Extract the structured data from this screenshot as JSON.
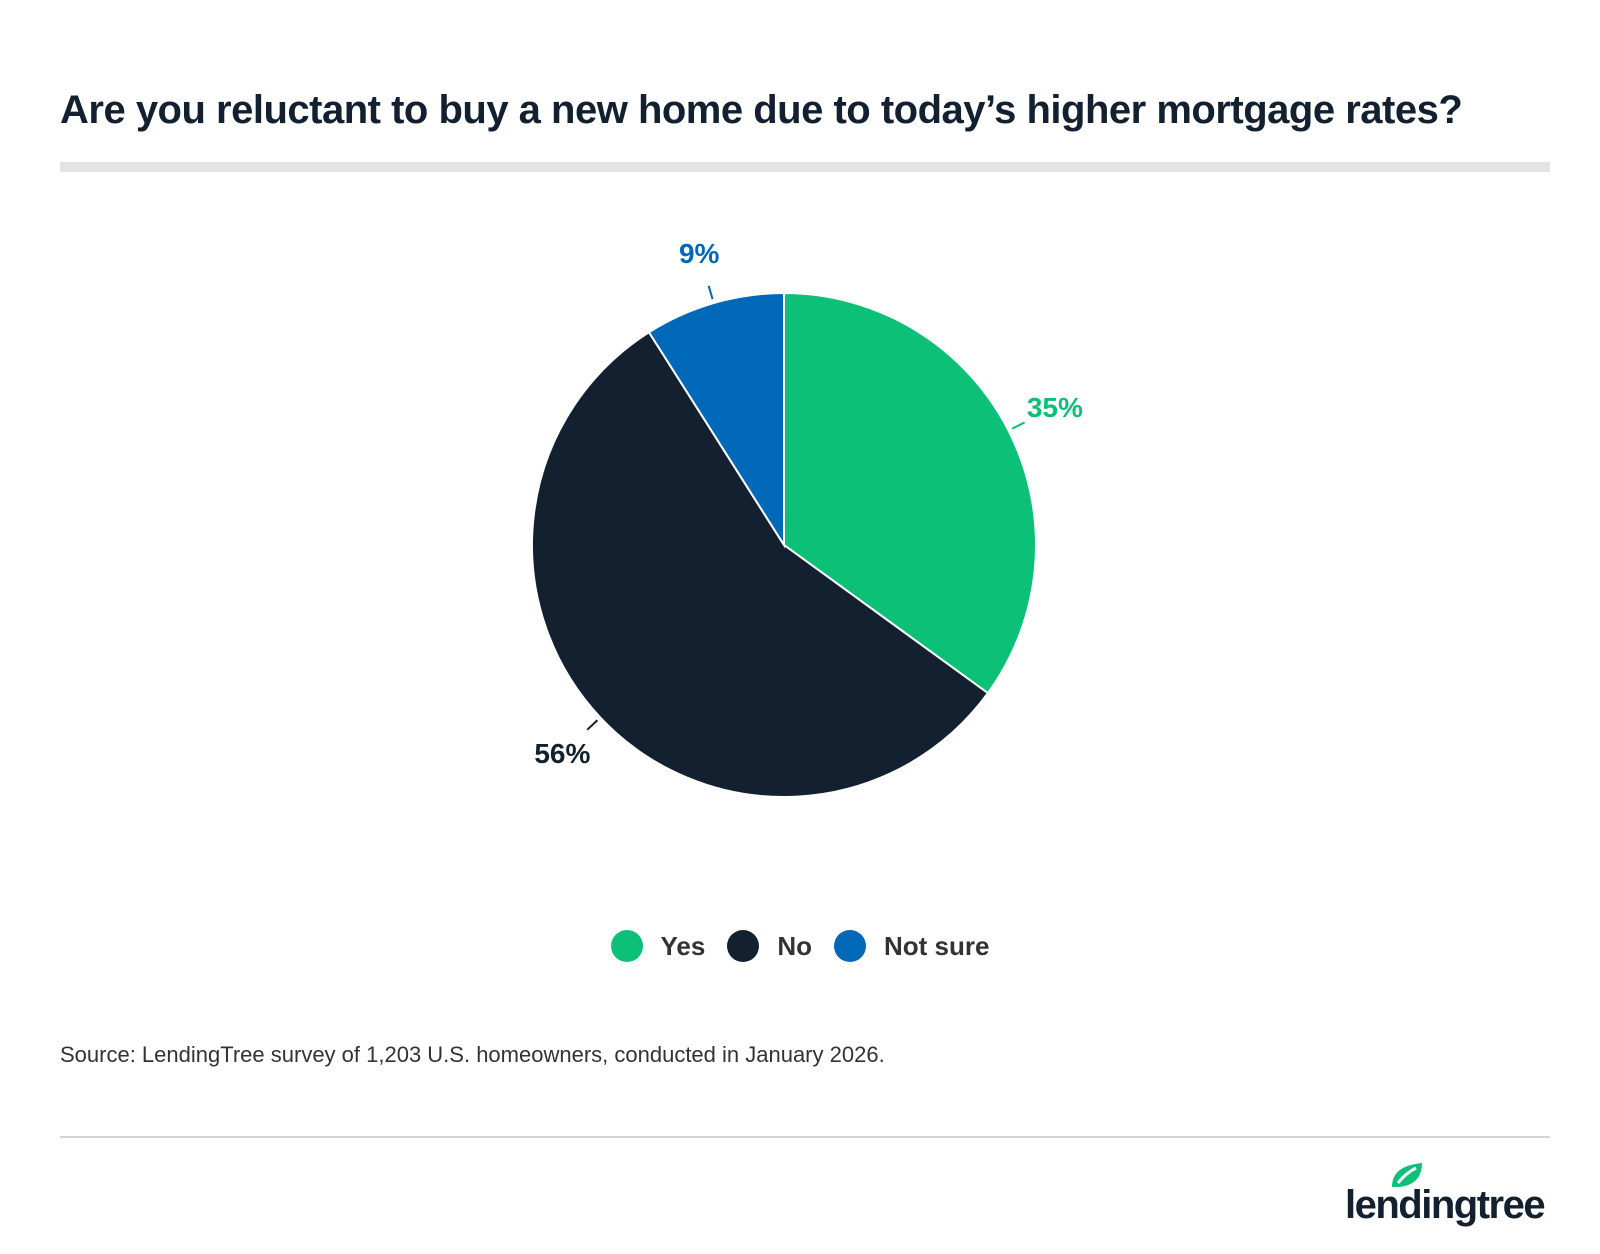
{
  "title": "Are you reluctant to buy a new home due to today’s higher mortgage rates?",
  "chart_data": {
    "type": "pie",
    "title": "Are you reluctant to buy a new home due to today’s higher mortgage rates?",
    "categories": [
      "Yes",
      "No",
      "Not sure"
    ],
    "values": [
      35,
      56,
      9
    ],
    "data_labels": [
      "35%",
      "56%",
      "9%"
    ],
    "colors": [
      "#0cc177",
      "#13202f",
      "#0068b8"
    ],
    "start_angle": "top, clockwise",
    "legend_position": "bottom"
  },
  "legend": [
    {
      "label": "Yes",
      "color": "#0cc177"
    },
    {
      "label": "No",
      "color": "#13202f"
    },
    {
      "label": "Not sure",
      "color": "#0068b8"
    }
  ],
  "source": "Source: LendingTree survey of 1,203 U.S. homeowners, conducted in January 2026.",
  "logo": {
    "text": "lendingtree",
    "color": "#0cc177"
  }
}
